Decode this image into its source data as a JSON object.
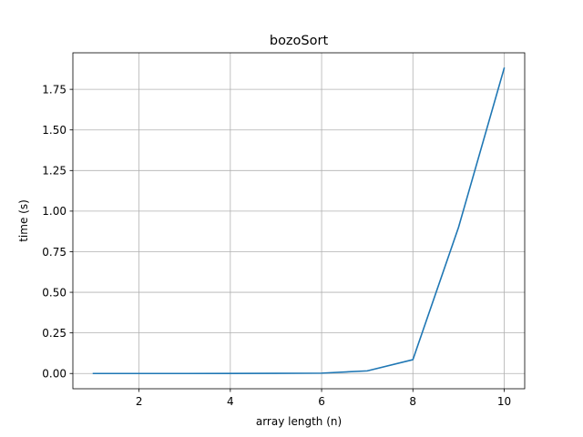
{
  "chart_data": {
    "type": "line",
    "title": "bozoSort",
    "xlabel": "array length (n)",
    "ylabel": "time (s)",
    "xlim": [
      0.55,
      10.45
    ],
    "ylim": [
      -0.094,
      1.975
    ],
    "x_ticks": [
      2,
      4,
      6,
      8,
      10
    ],
    "y_ticks": [
      0.0,
      0.25,
      0.5,
      0.75,
      1.0,
      1.25,
      1.5,
      1.75
    ],
    "x_tick_labels": [
      "2",
      "4",
      "6",
      "8",
      "10"
    ],
    "y_tick_labels": [
      "0.00",
      "0.25",
      "0.50",
      "0.75",
      "1.00",
      "1.25",
      "1.50",
      "1.75"
    ],
    "grid": true,
    "series": [
      {
        "color": "#1f77b4",
        "x": [
          1,
          2,
          3,
          4,
          5,
          6,
          7,
          8,
          9,
          10
        ],
        "y": [
          0.0,
          0.0,
          0.0,
          0.0005,
          0.001,
          0.002,
          0.016,
          0.085,
          0.9,
          1.88
        ]
      }
    ]
  }
}
